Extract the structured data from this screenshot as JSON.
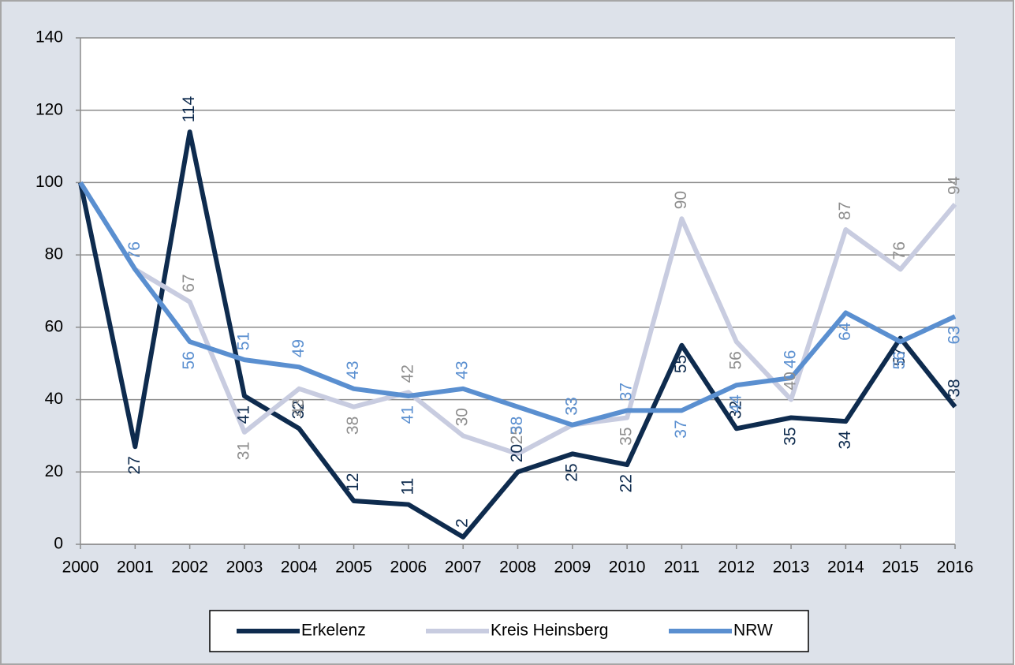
{
  "chart_data": {
    "type": "line",
    "categories": [
      "2000",
      "2001",
      "2002",
      "2003",
      "2004",
      "2005",
      "2006",
      "2007",
      "2008",
      "2009",
      "2010",
      "2011",
      "2012",
      "2013",
      "2014",
      "2015",
      "2016"
    ],
    "series": [
      {
        "name": "Erkelenz",
        "color": "#0e2b4e",
        "label_color": "#0e2b4e",
        "values": [
          100,
          27,
          114,
          41,
          32,
          12,
          11,
          2,
          20,
          25,
          22,
          55,
          32,
          35,
          34,
          57,
          38
        ],
        "value_labels": [
          null,
          "27",
          "114",
          "41",
          "32",
          "12",
          "11",
          "2",
          "20",
          "25",
          "22",
          "55",
          "32",
          "35",
          "34",
          "57",
          "38"
        ]
      },
      {
        "name": "Kreis Heinsberg",
        "color": "#c8cce0",
        "label_color": "#8e8e8e",
        "values": [
          100,
          76,
          67,
          31,
          43,
          38,
          42,
          30,
          25,
          33,
          35,
          90,
          56,
          40,
          87,
          76,
          94
        ],
        "value_labels": [
          null,
          null,
          "67",
          "31",
          "43",
          "38",
          "42",
          "30",
          "25",
          "33",
          "35",
          "90",
          "56",
          "40",
          "87",
          "76",
          "94"
        ]
      },
      {
        "name": "NRW",
        "color": "#5a8fd0",
        "label_color": "#5a8fd0",
        "values": [
          100,
          76,
          56,
          51,
          49,
          43,
          41,
          43,
          38,
          33,
          37,
          37,
          44,
          46,
          64,
          56,
          63
        ],
        "value_labels": [
          null,
          "76",
          "56",
          "51",
          "49",
          "43",
          "41",
          "43",
          "38",
          "33",
          "37",
          "37",
          "44",
          "46",
          "64",
          "56",
          "63"
        ]
      }
    ],
    "ylim": [
      0,
      140
    ],
    "yticks": [
      0,
      20,
      40,
      60,
      80,
      100,
      120,
      140
    ],
    "grid": true,
    "legend": "bottom"
  }
}
